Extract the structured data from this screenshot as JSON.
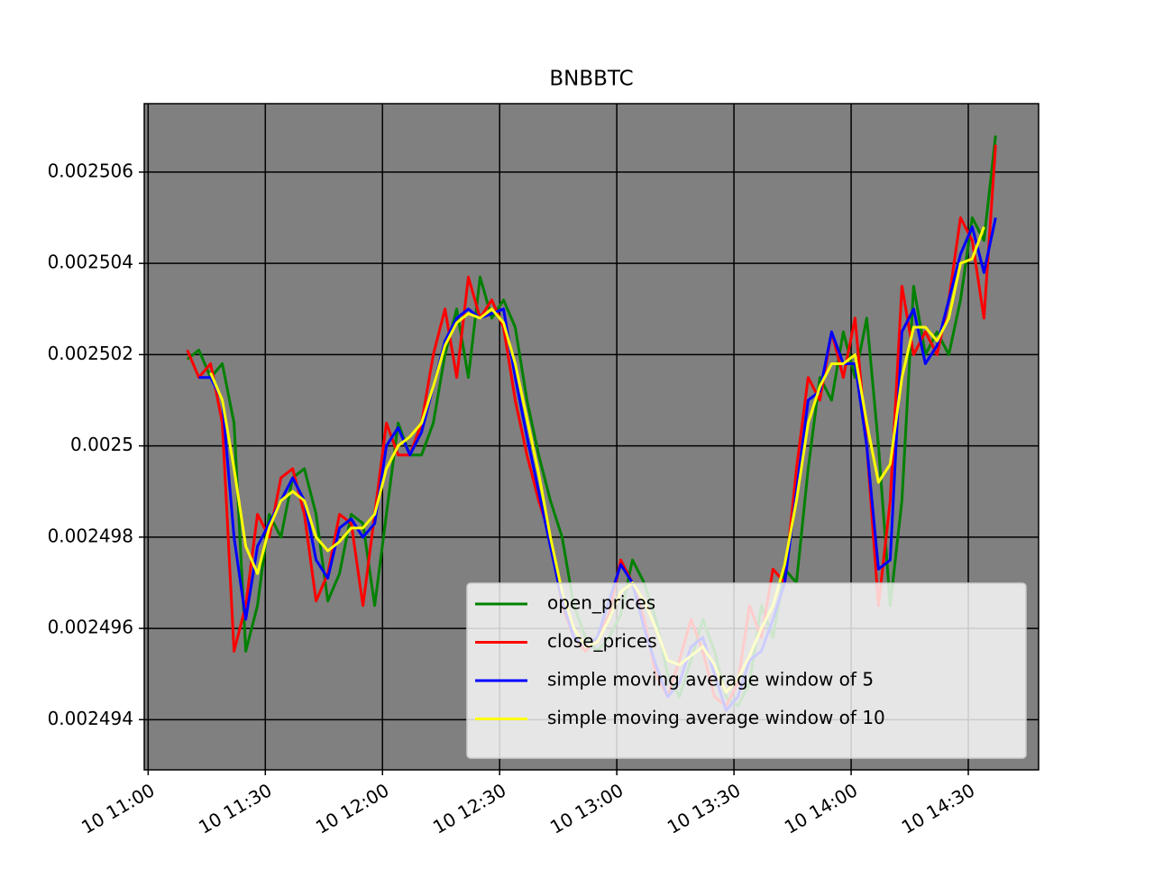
{
  "chart_data": {
    "type": "line",
    "title": "BNBBTC",
    "x": [
      "10 11:10",
      "10 11:13",
      "10 11:16",
      "10 11:19",
      "10 11:22",
      "10 11:25",
      "10 11:28",
      "10 11:31",
      "10 11:34",
      "10 11:37",
      "10 11:40",
      "10 11:43",
      "10 11:46",
      "10 11:49",
      "10 11:52",
      "10 11:55",
      "10 11:58",
      "10 12:01",
      "10 12:04",
      "10 12:07",
      "10 12:10",
      "10 12:13",
      "10 12:16",
      "10 12:19",
      "10 12:22",
      "10 12:25",
      "10 12:28",
      "10 12:31",
      "10 12:34",
      "10 12:37",
      "10 12:40",
      "10 12:43",
      "10 12:46",
      "10 12:49",
      "10 12:52",
      "10 12:55",
      "10 12:58",
      "10 13:01",
      "10 13:04",
      "10 13:07",
      "10 13:10",
      "10 13:13",
      "10 13:16",
      "10 13:19",
      "10 13:22",
      "10 13:25",
      "10 13:28",
      "10 13:31",
      "10 13:34",
      "10 13:37",
      "10 13:40",
      "10 13:43",
      "10 13:46",
      "10 13:49",
      "10 13:52",
      "10 13:55",
      "10 13:58",
      "10 14:01",
      "10 14:04",
      "10 14:07",
      "10 14:10",
      "10 14:13",
      "10 14:16",
      "10 14:19",
      "10 14:22",
      "10 14:25",
      "10 14:28",
      "10 14:31",
      "10 14:34",
      "10 14:37"
    ],
    "series": [
      {
        "name": "open_prices",
        "color": "green",
        "values": [
          0.0025019,
          0.0025021,
          0.0025015,
          0.0025018,
          0.0025005,
          0.0024955,
          0.0024965,
          0.0024985,
          0.002498,
          0.0024993,
          0.0024995,
          0.0024985,
          0.0024966,
          0.0024972,
          0.0024985,
          0.0024983,
          0.0024965,
          0.0024985,
          0.0025005,
          0.0024998,
          0.0024998,
          0.0025005,
          0.002502,
          0.002503,
          0.0025015,
          0.0025037,
          0.0025028,
          0.0025032,
          0.0025026,
          0.002501,
          0.0024998,
          0.0024988,
          0.002498,
          0.0024965,
          0.0024958,
          0.0024955,
          0.0024958,
          0.0024963,
          0.0024975,
          0.002497,
          0.0024962,
          0.002495,
          0.0024945,
          0.0024953,
          0.0024962,
          0.0024955,
          0.0024945,
          0.0024943,
          0.0024948,
          0.0024965,
          0.0024958,
          0.0024973,
          0.002497,
          0.0024995,
          0.0025015,
          0.002501,
          0.0025025,
          0.0025015,
          0.0025028,
          0.0025,
          0.0024965,
          0.0024988,
          0.0025035,
          0.002502,
          0.0025025,
          0.002502,
          0.0025032,
          0.002505,
          0.0025045,
          0.0025068
        ]
      },
      {
        "name": "close_prices",
        "color": "red",
        "values": [
          0.0025021,
          0.0025015,
          0.0025018,
          0.0025005,
          0.0024955,
          0.0024965,
          0.0024985,
          0.002498,
          0.0024993,
          0.0024995,
          0.0024985,
          0.0024966,
          0.0024972,
          0.0024985,
          0.0024983,
          0.0024965,
          0.0024985,
          0.0025005,
          0.0024998,
          0.0024998,
          0.0025005,
          0.002502,
          0.002503,
          0.0025015,
          0.0025037,
          0.0025028,
          0.0025032,
          0.0025026,
          0.002501,
          0.0024998,
          0.0024988,
          0.002498,
          0.0024965,
          0.0024958,
          0.0024955,
          0.0024958,
          0.0024963,
          0.0024975,
          0.002497,
          0.0024962,
          0.002495,
          0.0024945,
          0.0024953,
          0.0024962,
          0.0024955,
          0.0024945,
          0.0024943,
          0.0024948,
          0.0024965,
          0.0024958,
          0.0024973,
          0.002497,
          0.0024995,
          0.0025015,
          0.002501,
          0.0025025,
          0.0025015,
          0.0025028,
          0.0025,
          0.0024965,
          0.0024988,
          0.0025035,
          0.002502,
          0.0025025,
          0.002502,
          0.0025032,
          0.002505,
          0.0025045,
          0.0025028,
          0.0025066
        ]
      },
      {
        "name": "simple moving average window of 5",
        "color": "blue",
        "values": [
          null,
          0.0025015,
          0.0025015,
          0.002501,
          0.002498,
          0.0024962,
          0.0024978,
          0.0024983,
          0.0024988,
          0.0024993,
          0.0024988,
          0.0024975,
          0.0024971,
          0.0024982,
          0.0024984,
          0.002498,
          0.0024983,
          0.0025,
          0.0025004,
          0.0024998,
          0.0025003,
          0.0025013,
          0.0025023,
          0.0025028,
          0.002503,
          0.0025028,
          0.0025029,
          0.002503,
          0.0025015,
          0.0025002,
          0.002499,
          0.0024978,
          0.0024966,
          0.0024958,
          0.0024956,
          0.0024958,
          0.0024966,
          0.0024974,
          0.002497,
          0.002496,
          0.0024952,
          0.0024945,
          0.0024948,
          0.0024956,
          0.0024958,
          0.002495,
          0.0024942,
          0.0024945,
          0.0024953,
          0.0024955,
          0.0024962,
          0.002497,
          0.002499,
          0.002501,
          0.0025012,
          0.0025025,
          0.0025018,
          0.0025018,
          0.0025,
          0.0024973,
          0.0024975,
          0.0025025,
          0.002503,
          0.0025018,
          0.0025022,
          0.0025032,
          0.0025042,
          0.0025048,
          0.0025038,
          0.002505
        ]
      },
      {
        "name": "simple moving average window of 10",
        "color": "yellow",
        "values": [
          null,
          null,
          0.0025016,
          0.002501,
          0.0024995,
          0.0024978,
          0.0024972,
          0.0024982,
          0.0024988,
          0.002499,
          0.0024988,
          0.002498,
          0.0024977,
          0.0024979,
          0.0024982,
          0.0024982,
          0.0024985,
          0.0024995,
          0.0025,
          0.0025002,
          0.0025005,
          0.0025013,
          0.0025022,
          0.0025027,
          0.0025029,
          0.0025028,
          0.002503,
          0.0025027,
          0.0025018,
          0.0025006,
          0.0024994,
          0.002498,
          0.0024968,
          0.002496,
          0.0024956,
          0.0024957,
          0.0024962,
          0.0024968,
          0.002497,
          0.0024966,
          0.002496,
          0.0024953,
          0.0024952,
          0.0024954,
          0.0024956,
          0.0024952,
          0.0024946,
          0.0024949,
          0.0024954,
          0.002496,
          0.0024965,
          0.0024974,
          0.0024988,
          0.0025005,
          0.0025013,
          0.0025018,
          0.0025018,
          0.002502,
          0.0025005,
          0.0024992,
          0.0024996,
          0.0025015,
          0.0025026,
          0.0025026,
          0.0025023,
          0.0025028,
          0.002504,
          0.0025041,
          0.0025048,
          null
        ]
      }
    ],
    "xlim": [
      "10 10:59",
      "10 14:48"
    ],
    "xticks": [
      "10 11:00",
      "10 11:30",
      "10 12:00",
      "10 12:30",
      "10 13:00",
      "10 13:30",
      "10 14:00",
      "10 14:30"
    ],
    "ylim": [
      0.0024929,
      0.0025075
    ],
    "yticks": [
      0.002494,
      0.002496,
      0.002498,
      0.0025,
      0.002502,
      0.002504,
      0.002506
    ],
    "grid": true,
    "legend": "lower right"
  }
}
